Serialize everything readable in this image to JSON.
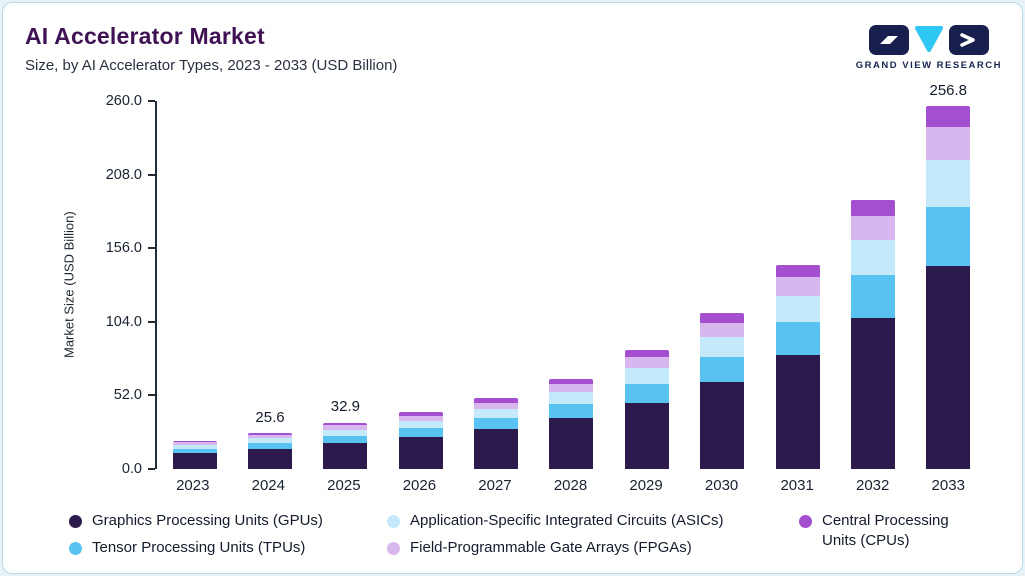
{
  "header": {
    "title": "AI Accelerator Market",
    "subtitle": "Size, by AI Accelerator Types, 2023 - 2033 (USD Billion)",
    "logo_text": "GRAND VIEW RESEARCH"
  },
  "colors": {
    "title": "#3f1254",
    "subtitle": "#2a3140",
    "axis": "#232c3b",
    "text": "#141c2c",
    "card_border": "#b5d8ea",
    "page_bg": "#e9f2f9",
    "logo_navy": "#181f4e",
    "logo_cyan": "#2ec6f2"
  },
  "chart_data": {
    "type": "bar",
    "stacked": true,
    "title": "AI Accelerator Market",
    "subtitle": "Size, by AI Accelerator Types, 2023 - 2033 (USD Billion)",
    "xlabel": "",
    "ylabel": "Market Size (USD Billion)",
    "ylim": [
      0,
      260
    ],
    "yticks": [
      "0.0",
      "52.0",
      "104.0",
      "156.0",
      "208.0",
      "260.0"
    ],
    "grid": false,
    "legend_position": "bottom",
    "categories": [
      "2023",
      "2024",
      "2025",
      "2026",
      "2027",
      "2028",
      "2029",
      "2030",
      "2031",
      "2032",
      "2033"
    ],
    "series": [
      {
        "name": "Graphics Processing Units (GPUs)",
        "color": "#2d1a4d",
        "values": [
          11.2,
          14.3,
          18.3,
          22.4,
          28.0,
          35.8,
          47.0,
          61.6,
          80.6,
          106.4,
          143.8
        ]
      },
      {
        "name": "Tensor Processing Units (TPUs)",
        "color": "#58c3f0",
        "values": [
          3.2,
          4.1,
          5.3,
          6.4,
          8.0,
          10.2,
          13.4,
          17.6,
          23.0,
          30.4,
          41.1
        ]
      },
      {
        "name": "Application-Specific Integrated Circuits (ASICs)",
        "color": "#c4e9fa",
        "values": [
          2.6,
          3.3,
          4.3,
          5.2,
          6.5,
          8.3,
          10.9,
          14.3,
          18.7,
          24.7,
          33.4
        ]
      },
      {
        "name": "Field-Programmable Gate Arrays (FPGAs)",
        "color": "#d8b7ee",
        "values": [
          1.8,
          2.3,
          3.0,
          3.6,
          4.5,
          5.8,
          7.6,
          9.9,
          13.0,
          17.1,
          23.1
        ]
      },
      {
        "name": "Central Processing Units (CPUs)",
        "color": "#a44fd0",
        "values": [
          1.2,
          1.6,
          2.0,
          2.4,
          3.0,
          3.9,
          5.1,
          6.6,
          8.7,
          11.4,
          15.4
        ]
      }
    ],
    "totals": [
      20.0,
      25.6,
      32.9,
      40.0,
      50.0,
      64.0,
      84.0,
      110.0,
      144.0,
      190.0,
      256.8
    ],
    "value_labels": {
      "2024": "25.6",
      "2025": "32.9",
      "2033": "256.8"
    }
  },
  "legend": {
    "columns": [
      [
        0,
        1
      ],
      [
        2,
        3
      ],
      [
        4
      ]
    ]
  }
}
